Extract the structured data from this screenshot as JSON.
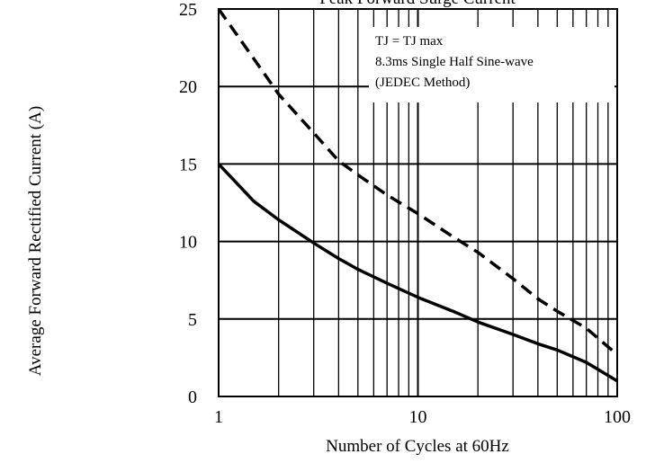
{
  "chart_data": {
    "type": "line",
    "title": "Peak Forward Surge Current",
    "xlabel": "Number of Cycles at 60Hz",
    "ylabel": "Average Forward Rectified Current (A)",
    "x_scale": "log",
    "xlim": [
      1,
      100
    ],
    "ylim": [
      0,
      25
    ],
    "x_ticks": [
      "1",
      "10",
      "100"
    ],
    "y_ticks": [
      "0",
      "5",
      "10",
      "15",
      "20",
      "25"
    ],
    "grid": true,
    "annotation": [
      "TJ = TJ max",
      "8.3ms Single Half Sine-wave",
      "(JEDEC Method)"
    ],
    "series": [
      {
        "style": "solid",
        "x": [
          1,
          1.5,
          2,
          3,
          4,
          5,
          7,
          10,
          15,
          20,
          30,
          40,
          50,
          70,
          100
        ],
        "y": [
          15,
          12.6,
          11.4,
          9.9,
          8.9,
          8.2,
          7.3,
          6.4,
          5.5,
          4.8,
          4.0,
          3.4,
          3.0,
          2.2,
          1.0
        ]
      },
      {
        "style": "dashed",
        "x": [
          1,
          1.5,
          2,
          3,
          4,
          5,
          7,
          10,
          15,
          20,
          30,
          40,
          50,
          70,
          100
        ],
        "y": [
          25,
          21.8,
          19.5,
          17.0,
          15.2,
          14.3,
          13.0,
          11.8,
          10.3,
          9.3,
          7.6,
          6.3,
          5.5,
          4.4,
          2.7
        ]
      }
    ],
    "colors": {
      "line": "#000000",
      "grid": "#000000",
      "background": "#ffffff"
    }
  }
}
